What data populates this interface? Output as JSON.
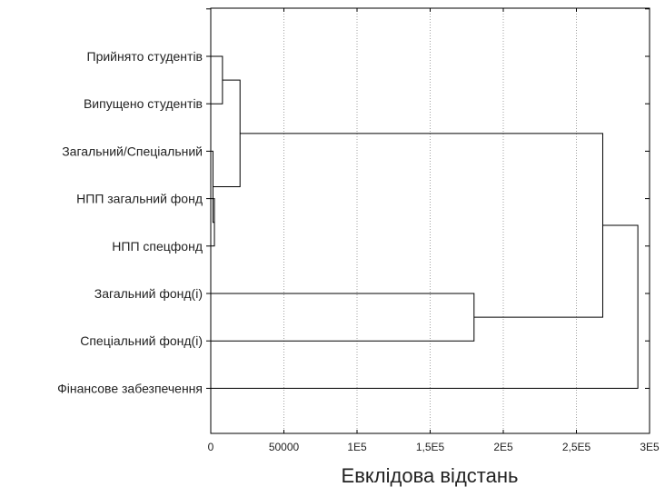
{
  "chart_data": {
    "type": "dendrogram",
    "orientation": "horizontal",
    "title": "",
    "xlabel": "Евклідова відстань",
    "ylabel": "",
    "xlim": [
      0,
      300000
    ],
    "grid": true,
    "x_ticks": [
      {
        "value": 0,
        "label": "0"
      },
      {
        "value": 50000,
        "label": "50000"
      },
      {
        "value": 100000,
        "label": "1E5"
      },
      {
        "value": 150000,
        "label": "1,5E5"
      },
      {
        "value": 200000,
        "label": "2E5"
      },
      {
        "value": 250000,
        "label": "2,5E5"
      },
      {
        "value": 300000,
        "label": "3E5"
      }
    ],
    "leaves": [
      "Прийнято студентів",
      "Випущено студентів",
      "Загальний/Спеціальний",
      "НПП загальний фонд",
      "НПП спецфонд",
      "Загальний фонд(і)",
      "Спеціальний фонд(і)",
      "Фінансове забезпечення"
    ],
    "merges": [
      {
        "left": "L3",
        "right": "L4",
        "distance": 2500
      },
      {
        "left": "L2",
        "right": "M0",
        "distance": 1500
      },
      {
        "left": "L0",
        "right": "L1",
        "distance": 8000
      },
      {
        "left": "M2",
        "right": "M1",
        "distance": 20000
      },
      {
        "left": "L5",
        "right": "L6",
        "distance": 180000
      },
      {
        "left": "M3",
        "right": "M4",
        "distance": 268000
      },
      {
        "left": "M5",
        "right": "L7",
        "distance": 292000
      }
    ]
  }
}
